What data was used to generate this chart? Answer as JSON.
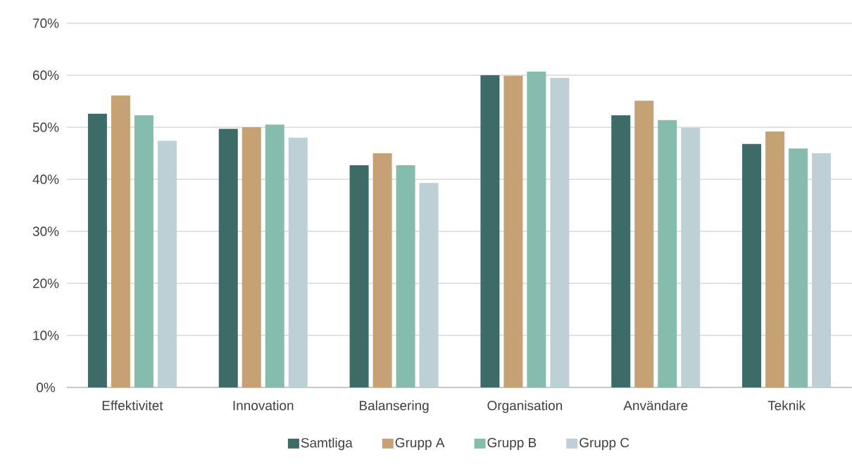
{
  "chart_data": {
    "type": "bar",
    "categories": [
      "Effektivitet",
      "Innovation",
      "Balansering",
      "Organisation",
      "Användare",
      "Teknik"
    ],
    "series": [
      {
        "name": "Samtliga",
        "color": "#3d6b67",
        "values": [
          52.6,
          49.7,
          42.7,
          60.0,
          52.3,
          46.8
        ]
      },
      {
        "name": "Grupp A",
        "color": "#c6a173",
        "values": [
          56.1,
          50.0,
          45.0,
          59.9,
          55.1,
          49.2
        ]
      },
      {
        "name": "Grupp B",
        "color": "#86bcad",
        "values": [
          52.3,
          50.5,
          42.7,
          60.7,
          51.4,
          45.9
        ]
      },
      {
        "name": "Grupp C",
        "color": "#bcd0d5",
        "values": [
          47.4,
          48.0,
          39.3,
          59.5,
          49.9,
          45.0
        ]
      }
    ],
    "ylim": [
      0,
      70
    ],
    "yticks": [
      {
        "value": 0,
        "label": "0%"
      },
      {
        "value": 10,
        "label": "10%"
      },
      {
        "value": 20,
        "label": "20%"
      },
      {
        "value": 30,
        "label": "30%"
      },
      {
        "value": 40,
        "label": "40%"
      },
      {
        "value": 50,
        "label": "50%"
      },
      {
        "value": 60,
        "label": "60%"
      },
      {
        "value": 70,
        "label": "70%"
      }
    ],
    "grid": "y",
    "legend": "bottom"
  }
}
